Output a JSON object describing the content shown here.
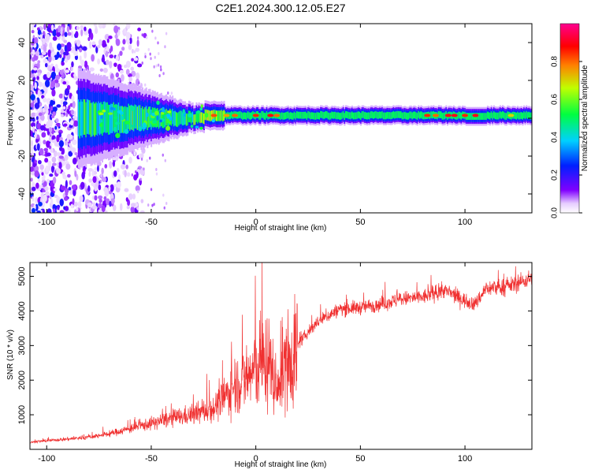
{
  "title": "C2E1.2024.300.12.05.E27",
  "chart_data": [
    {
      "type": "heatmap",
      "xlabel": "Height of straight line (km)",
      "ylabel": "Frequency (Hz)",
      "xlim": [
        -108,
        132
      ],
      "ylim": [
        -50,
        50
      ],
      "xticks": [
        -100,
        -50,
        0,
        50,
        100
      ],
      "yticks": [
        -40,
        -20,
        0,
        20,
        40
      ],
      "xtick_labels": [
        "-100",
        "-50",
        "0",
        "50",
        "100"
      ],
      "ytick_labels": [
        "-40",
        "-20",
        "0",
        "20",
        "40"
      ],
      "colorbar": {
        "label": "Normalized spectral amplitude",
        "range": [
          0,
          1
        ],
        "ticks": [
          0.0,
          0.2,
          0.4,
          0.6,
          0.8
        ],
        "tick_labels": [
          "0.0",
          "0.2",
          "0.4",
          "0.6",
          "0.8"
        ],
        "colormap": "rainbow (white-violet-blue-cyan-green-yellow-red-magenta)"
      },
      "main_line": {
        "frequency_hz": 0,
        "note": "concentrated band near 0 Hz from about -75 km to 132 km; broad scatter from -108 km to about -55 km"
      }
    },
    {
      "type": "line",
      "xlabel": "Height of straight line (km)",
      "ylabel": "SNR (10 * v/v)",
      "xlim": [
        -108,
        132
      ],
      "ylim": [
        0,
        5400
      ],
      "xticks": [
        -100,
        -50,
        0,
        50,
        100
      ],
      "yticks": [
        1000,
        2000,
        3000,
        4000,
        5000
      ],
      "xtick_labels": [
        "-100",
        "-50",
        "0",
        "50",
        "100"
      ],
      "ytick_labels": [
        "1000",
        "2000",
        "3000",
        "4000",
        "5000"
      ],
      "color": "#f03030",
      "trend": {
        "x": [
          -108,
          -100,
          -90,
          -80,
          -70,
          -60,
          -50,
          -40,
          -30,
          -20,
          -15,
          -10,
          -5,
          0,
          5,
          8,
          10,
          12,
          15,
          20,
          25,
          30,
          40,
          50,
          60,
          70,
          80,
          90,
          100,
          105,
          110,
          120,
          132
        ],
        "y": [
          200,
          250,
          300,
          350,
          450,
          600,
          750,
          900,
          1000,
          1200,
          1500,
          1900,
          2000,
          2350,
          2550,
          2300,
          1500,
          2300,
          2500,
          3000,
          3400,
          3700,
          4050,
          4100,
          4200,
          4350,
          4400,
          4600,
          4300,
          4200,
          4650,
          4700,
          4950
        ]
      }
    }
  ]
}
